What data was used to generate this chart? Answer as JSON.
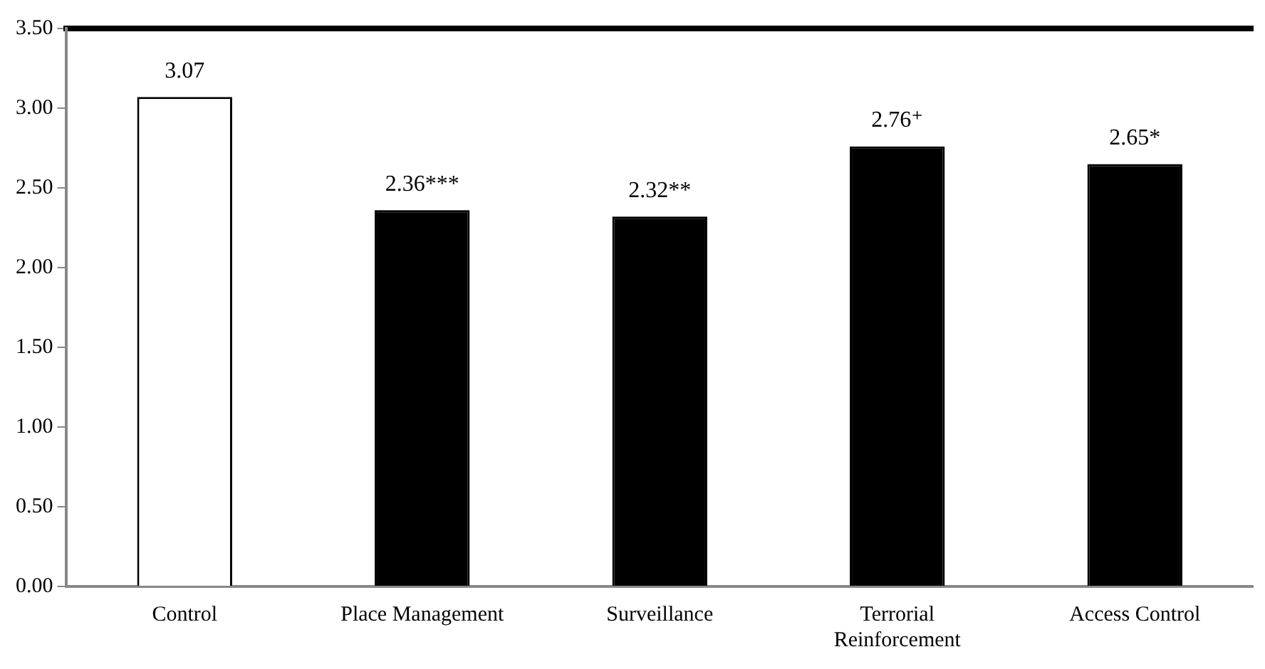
{
  "chart_data": {
    "type": "bar",
    "categories": [
      "Control",
      "Place Management",
      "Surveillance",
      "Terrorial Reinforcement",
      "Access Control"
    ],
    "values": [
      3.07,
      2.36,
      2.32,
      2.76,
      2.65
    ],
    "colors": [
      "#ffffff",
      "#000000",
      "#000000",
      "#000000",
      "#000000"
    ],
    "value_labels": [
      "3.07",
      "2.36***",
      "2.32**",
      "2.76⁺",
      "2.65*"
    ],
    "ylim": [
      0,
      3.5
    ],
    "yticks": [
      {
        "value": 0,
        "label": "0.00"
      },
      {
        "value": 0.5,
        "label": "0.50"
      },
      {
        "value": 1,
        "label": "1.00"
      },
      {
        "value": 1.5,
        "label": "1.50"
      },
      {
        "value": 2,
        "label": "2.00"
      },
      {
        "value": 2.5,
        "label": "2.50"
      },
      {
        "value": 3,
        "label": "3.00"
      },
      {
        "value": 3.5,
        "label": "3.50"
      }
    ],
    "grid": false,
    "legend": false
  }
}
